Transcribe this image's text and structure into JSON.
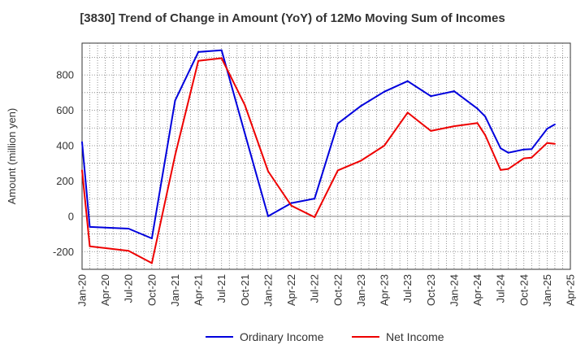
{
  "chart_data": {
    "type": "line",
    "title": "[3830]  Trend of Change in Amount (YoY) of 12Mo Moving Sum of Incomes",
    "xlabel": "",
    "ylabel": "Amount (million yen)",
    "ylim": [
      -300,
      980
    ],
    "yticks": [
      -200,
      0,
      200,
      400,
      600,
      800
    ],
    "xtick_labels": [
      "Jan-20",
      "Apr-20",
      "Jul-20",
      "Oct-20",
      "Jan-21",
      "Apr-21",
      "Jul-21",
      "Oct-21",
      "Jan-22",
      "Apr-22",
      "Jul-22",
      "Oct-22",
      "Jan-23",
      "Apr-23",
      "Jul-23",
      "Oct-23",
      "Jan-24",
      "Apr-24",
      "Jul-24",
      "Oct-24",
      "Jan-25",
      "Apr-25"
    ],
    "grid": true,
    "legend_position": "bottom-center",
    "series": [
      {
        "name": "Ordinary Income",
        "color": "#0000dd",
        "points": [
          [
            "Jan-20",
            420
          ],
          [
            "Feb-20",
            -60
          ],
          [
            "Jul-20",
            -70
          ],
          [
            "Oct-20",
            -125
          ],
          [
            "Jan-21",
            655
          ],
          [
            "Apr-21",
            930
          ],
          [
            "Jul-21",
            940
          ],
          [
            "Oct-21",
            470
          ],
          [
            "Jan-22",
            0
          ],
          [
            "Apr-22",
            75
          ],
          [
            "Jul-22",
            100
          ],
          [
            "Oct-22",
            525
          ],
          [
            "Jan-23",
            625
          ],
          [
            "Apr-23",
            705
          ],
          [
            "Jul-23",
            765
          ],
          [
            "Oct-23",
            680
          ],
          [
            "Jan-24",
            708
          ],
          [
            "Apr-24",
            610
          ],
          [
            "May-24",
            565
          ],
          [
            "Jul-24",
            385
          ],
          [
            "Aug-24",
            360
          ],
          [
            "Oct-24",
            378
          ],
          [
            "Nov-24",
            380
          ],
          [
            "Jan-25",
            495
          ],
          [
            "Feb-25",
            520
          ]
        ]
      },
      {
        "name": "Net Income",
        "color": "#ee0000",
        "points": [
          [
            "Jan-20",
            260
          ],
          [
            "Feb-20",
            -170
          ],
          [
            "Jul-20",
            -195
          ],
          [
            "Oct-20",
            -265
          ],
          [
            "Jan-21",
            345
          ],
          [
            "Apr-21",
            880
          ],
          [
            "Jul-21",
            895
          ],
          [
            "Oct-21",
            630
          ],
          [
            "Jan-22",
            255
          ],
          [
            "Apr-22",
            60
          ],
          [
            "Jul-22",
            -5
          ],
          [
            "Oct-22",
            260
          ],
          [
            "Jan-23",
            315
          ],
          [
            "Apr-23",
            400
          ],
          [
            "Jul-23",
            587
          ],
          [
            "Oct-23",
            483
          ],
          [
            "Jan-24",
            510
          ],
          [
            "Apr-24",
            528
          ],
          [
            "May-24",
            460
          ],
          [
            "Jul-24",
            262
          ],
          [
            "Aug-24",
            268
          ],
          [
            "Oct-24",
            328
          ],
          [
            "Nov-24",
            332
          ],
          [
            "Jan-25",
            415
          ],
          [
            "Feb-25",
            410
          ]
        ]
      }
    ]
  }
}
